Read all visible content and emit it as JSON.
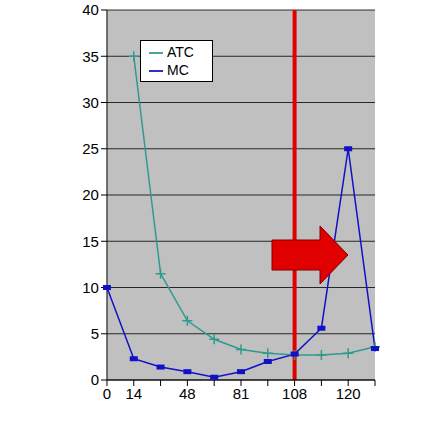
{
  "chart_data": {
    "type": "line",
    "categories": [
      "0",
      "14",
      null,
      "48",
      null,
      "81",
      null,
      "108",
      null,
      "120",
      null
    ],
    "series": [
      {
        "name": "ATC",
        "color": "#2f9a8f",
        "marker": "plus",
        "values": [
          null,
          35,
          11.5,
          6.4,
          4.4,
          3.3,
          2.9,
          2.7,
          2.7,
          2.9,
          3.6
        ]
      },
      {
        "name": "MC",
        "color": "#1010c8",
        "marker": "square",
        "values": [
          10,
          2.3,
          1.4,
          0.9,
          0.3,
          0.9,
          2.0,
          2.8,
          5.6,
          25,
          3.4
        ]
      }
    ],
    "ylim": [
      0,
      40
    ],
    "yticks": [
      0,
      5,
      10,
      15,
      20,
      25,
      30,
      35,
      40
    ],
    "grid": true,
    "legend": "upper left"
  }
}
